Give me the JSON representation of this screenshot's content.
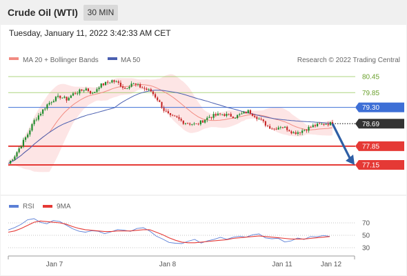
{
  "header": {
    "instrument": "Crude Oil (WTI)",
    "timeframe": "30 MIN",
    "timestamp": "Tuesday, January 11, 2022 3:42:33 AM CET"
  },
  "legend": {
    "ma20": "MA 20 + Bollinger Bands",
    "ma50": "MA 50",
    "credit": "Research © 2022 Trading Central",
    "rsi": "RSI",
    "ma9": "9MA"
  },
  "colors": {
    "ma20": "#f28b82",
    "bollinger_fill": "#fde0e0",
    "ma50": "#4a5fb0",
    "candle_up": "#1e8c2c",
    "candle_down": "#c62828",
    "resistance": "#8bc34a",
    "pivot": "#3d6fd6",
    "support": "#e53935",
    "current": "#333333",
    "arrow": "#2f5fa5",
    "rsi": "#5b7fd6",
    "rsi_ma": "#e53935"
  },
  "chart_data": [
    {
      "type": "candlestick",
      "title": "Crude Oil (WTI) 30 MIN",
      "xlabel": "",
      "ylabel": "",
      "x_ticks": [
        "Jan 7",
        "Jan 8",
        "Jan 11",
        "Jan 12"
      ],
      "ylim": [
        76.9,
        81.0
      ],
      "levels": [
        {
          "value": 80.45,
          "label": "80.45",
          "kind": "resistance"
        },
        {
          "value": 79.85,
          "label": "79.85",
          "kind": "resistance"
        },
        {
          "value": 79.3,
          "label": "79.30",
          "kind": "pivot"
        },
        {
          "value": 78.69,
          "label": "78.69",
          "kind": "current"
        },
        {
          "value": 77.85,
          "label": "77.85",
          "kind": "support"
        },
        {
          "value": 77.15,
          "label": "77.15",
          "kind": "support"
        }
      ],
      "price_path": [
        [
          0,
          77.2
        ],
        [
          3,
          77.5
        ],
        [
          6,
          77.9
        ],
        [
          9,
          78.3
        ],
        [
          12,
          78.8
        ],
        [
          15,
          79.1
        ],
        [
          18,
          79.4
        ],
        [
          21,
          79.6
        ],
        [
          24,
          79.7
        ],
        [
          27,
          79.6
        ],
        [
          30,
          79.8
        ],
        [
          33,
          79.9
        ],
        [
          36,
          80.0
        ],
        [
          39,
          79.8
        ],
        [
          42,
          80.1
        ],
        [
          45,
          80.2
        ],
        [
          48,
          80.3
        ],
        [
          51,
          80.2
        ],
        [
          54,
          80.0
        ],
        [
          57,
          80.2
        ],
        [
          60,
          80.1
        ],
        [
          63,
          80.0
        ],
        [
          66,
          79.9
        ],
        [
          69,
          79.6
        ],
        [
          72,
          79.2
        ],
        [
          75,
          78.95
        ],
        [
          78,
          78.9
        ],
        [
          81,
          78.75
        ],
        [
          84,
          78.7
        ],
        [
          87,
          78.65
        ],
        [
          90,
          78.8
        ],
        [
          93,
          78.95
        ],
        [
          96,
          79.0
        ],
        [
          99,
          79.05
        ],
        [
          102,
          79.0
        ],
        [
          105,
          78.95
        ],
        [
          108,
          79.05
        ],
        [
          111,
          79.15
        ],
        [
          114,
          79.0
        ],
        [
          117,
          78.8
        ],
        [
          120,
          78.6
        ],
        [
          123,
          78.5
        ],
        [
          126,
          78.6
        ],
        [
          129,
          78.5
        ],
        [
          132,
          78.35
        ],
        [
          135,
          78.4
        ],
        [
          138,
          78.5
        ],
        [
          141,
          78.6
        ],
        [
          144,
          78.65
        ],
        [
          147,
          78.7
        ],
        [
          150,
          78.69
        ]
      ],
      "series": [
        {
          "name": "MA 20 + Bollinger Bands"
        },
        {
          "name": "MA 50"
        }
      ]
    },
    {
      "type": "line",
      "title": "RSI",
      "y_ticks": [
        70,
        50,
        30
      ],
      "ylim": [
        20,
        80
      ],
      "series": [
        {
          "name": "RSI",
          "values": [
            58,
            62,
            68,
            74,
            78,
            72,
            70,
            73,
            71,
            66,
            62,
            58,
            56,
            58,
            55,
            54,
            57,
            60,
            58,
            56,
            62,
            63,
            57,
            50,
            44,
            40,
            37,
            36,
            40,
            42,
            38,
            40,
            43,
            46,
            45,
            48,
            49,
            47,
            50,
            52,
            45,
            43,
            44,
            40,
            42,
            45,
            44,
            47,
            48,
            50,
            49
          ]
        },
        {
          "name": "9MA",
          "values": [
            55,
            57,
            61,
            66,
            71,
            73,
            72,
            71,
            70,
            68,
            64,
            61,
            59,
            58,
            57,
            56,
            56,
            57,
            57,
            57,
            58,
            59,
            59,
            55,
            51,
            46,
            42,
            39,
            38,
            38,
            39,
            40,
            41,
            42,
            43,
            45,
            46,
            47,
            48,
            49,
            48,
            47,
            46,
            45,
            44,
            44,
            44,
            45,
            46,
            47,
            48
          ]
        }
      ]
    }
  ]
}
